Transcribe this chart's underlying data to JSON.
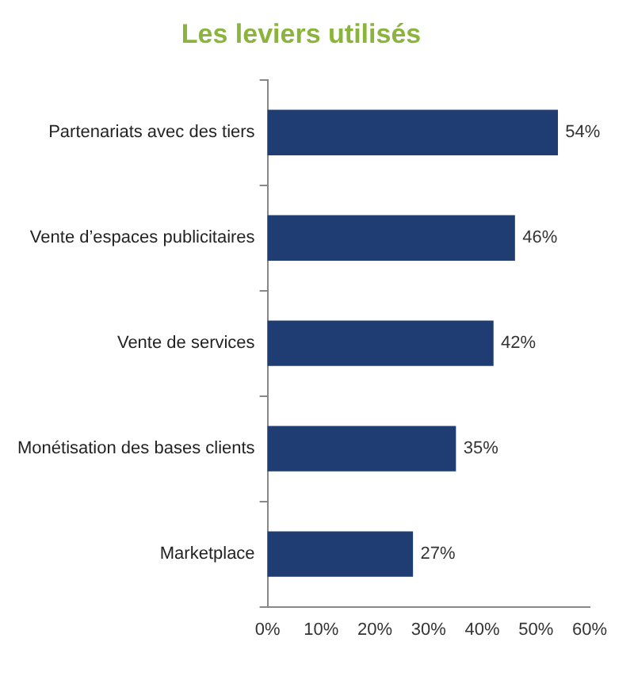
{
  "chart_data": {
    "type": "bar",
    "title": "Les leviers utilisés",
    "orientation": "horizontal",
    "color": "#1f3c73",
    "categories": [
      "Partenariats avec des tiers",
      "Vente d’espaces publicitaires",
      "Vente de services",
      "Monétisation des bases clients",
      "Marketplace"
    ],
    "values": [
      54,
      46,
      42,
      35,
      27
    ],
    "value_labels": [
      "54%",
      "46%",
      "42%",
      "35%",
      "27%"
    ],
    "xlim": [
      0,
      60
    ],
    "xticks": [
      {
        "value": 0,
        "label": "0%"
      },
      {
        "value": 10,
        "label": "10%"
      },
      {
        "value": 20,
        "label": "20%"
      },
      {
        "value": 30,
        "label": "30%"
      },
      {
        "value": 40,
        "label": "40%"
      },
      {
        "value": 50,
        "label": "50%"
      },
      {
        "value": 60,
        "label": "60%"
      }
    ]
  }
}
